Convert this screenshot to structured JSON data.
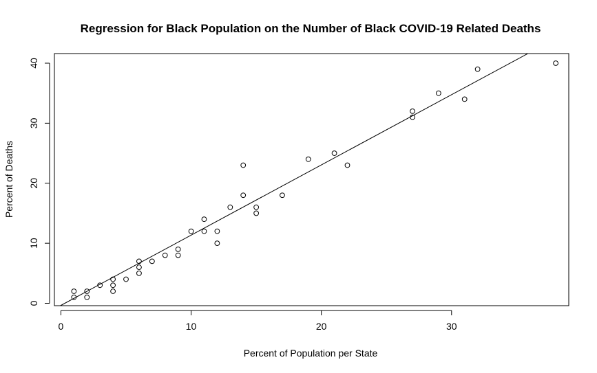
{
  "chart_data": {
    "type": "scatter",
    "title": "Regression for Black Population on the Number of Black COVID-19 Related Deaths",
    "xlabel": "Percent of Population per State",
    "ylabel": "Percent of Deaths",
    "xlim": [
      -0.5,
      39
    ],
    "ylim": [
      -0.4,
      41.6
    ],
    "x_ticks": [
      0,
      10,
      20,
      30
    ],
    "y_ticks": [
      0,
      10,
      20,
      30,
      40
    ],
    "grid": false,
    "points": [
      {
        "x": 1,
        "y": 2
      },
      {
        "x": 1,
        "y": 1
      },
      {
        "x": 2,
        "y": 2
      },
      {
        "x": 2,
        "y": 1
      },
      {
        "x": 3,
        "y": 3
      },
      {
        "x": 4,
        "y": 4
      },
      {
        "x": 4,
        "y": 3
      },
      {
        "x": 4,
        "y": 2
      },
      {
        "x": 5,
        "y": 4
      },
      {
        "x": 6,
        "y": 7
      },
      {
        "x": 6,
        "y": 6
      },
      {
        "x": 6,
        "y": 5
      },
      {
        "x": 7,
        "y": 7
      },
      {
        "x": 8,
        "y": 8
      },
      {
        "x": 9,
        "y": 9
      },
      {
        "x": 9,
        "y": 8
      },
      {
        "x": 10,
        "y": 12
      },
      {
        "x": 11,
        "y": 14
      },
      {
        "x": 11,
        "y": 12
      },
      {
        "x": 12,
        "y": 12
      },
      {
        "x": 12,
        "y": 10
      },
      {
        "x": 13,
        "y": 16
      },
      {
        "x": 14,
        "y": 23
      },
      {
        "x": 14,
        "y": 18
      },
      {
        "x": 15,
        "y": 16
      },
      {
        "x": 15,
        "y": 15
      },
      {
        "x": 17,
        "y": 18
      },
      {
        "x": 19,
        "y": 24
      },
      {
        "x": 21,
        "y": 25
      },
      {
        "x": 22,
        "y": 23
      },
      {
        "x": 27,
        "y": 32
      },
      {
        "x": 27,
        "y": 31
      },
      {
        "x": 29,
        "y": 35
      },
      {
        "x": 31,
        "y": 34
      },
      {
        "x": 32,
        "y": 39
      },
      {
        "x": 38,
        "y": 40
      }
    ],
    "regression_line": {
      "intercept": -0.35,
      "slope": 1.17
    }
  }
}
